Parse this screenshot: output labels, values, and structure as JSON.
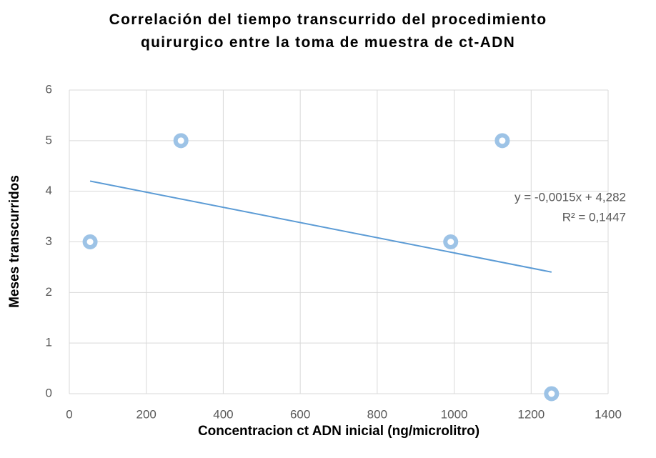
{
  "chart_data": {
    "type": "scatter",
    "title": "Correlación del tiempo transcurrido del procedimiento quirurgico entre la toma de muestra de ct-ADN",
    "xlabel": "Concentracion ct ADN inicial (ng/microlitro)",
    "ylabel": "Meses transcurridos",
    "series": [
      {
        "name": "Meses transcurridos",
        "color": "#9dc3e6",
        "x": [
          54,
          290,
          991,
          1125,
          1253
        ],
        "values": [
          3,
          5,
          3,
          5,
          0
        ]
      }
    ],
    "trendline": {
      "slope": -0.0015,
      "intercept": 4.282,
      "color": "#5b9bd5",
      "equation": "y = -0,0015x + 4,282",
      "r_squared": "R² = 0,1447"
    },
    "xlim": [
      0,
      1400
    ],
    "xticks": [
      0,
      200,
      400,
      600,
      800,
      1000,
      1200,
      1400
    ],
    "ylim": [
      0,
      6
    ],
    "yticks": [
      0,
      1,
      2,
      3,
      4,
      5,
      6
    ],
    "grid": true
  }
}
